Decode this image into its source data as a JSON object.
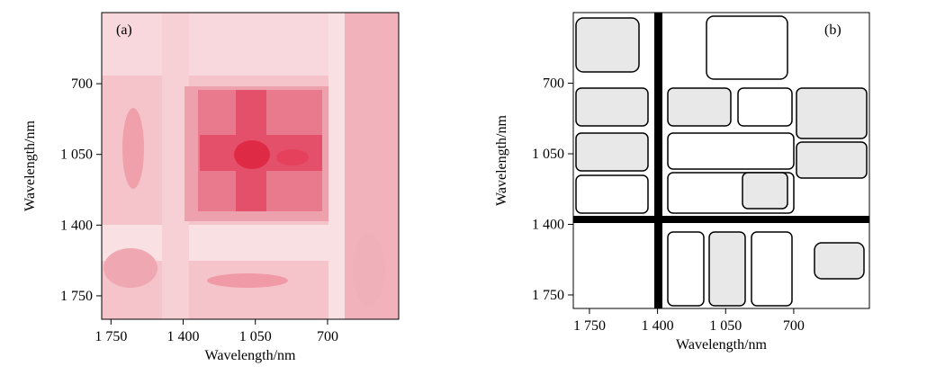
{
  "chart_data": [
    {
      "type": "contour",
      "panel_label": "(a)",
      "x_label": "Wavelength/nm",
      "y_label": "Wavelength/nm",
      "xlim": [
        1795,
        355
      ],
      "ylim": [
        348,
        1866
      ],
      "xticks": [
        {
          "value": 1750,
          "label": "1 750"
        },
        {
          "value": 1400,
          "label": "1 400"
        },
        {
          "value": 1050,
          "label": "1 050"
        },
        700
      ],
      "yticks": [
        700,
        {
          "value": 1050,
          "label": "1 050"
        },
        {
          "value": 1400,
          "label": "1 400"
        },
        {
          "value": 1750,
          "label": "1 750"
        }
      ]
    },
    {
      "type": "contour",
      "panel_label": "(b)",
      "x_label": "Wavelength/nm",
      "y_label": "Wavelength/nm",
      "xlim": [
        1833,
        311
      ],
      "ylim": [
        350,
        1817
      ],
      "xticks": [
        {
          "value": 1750,
          "label": "1 750"
        },
        {
          "value": 1400,
          "label": "1 400"
        },
        {
          "value": 1050,
          "label": "1 050"
        },
        700
      ],
      "yticks": [
        700,
        {
          "value": 1050,
          "label": "1 050"
        },
        {
          "value": 1400,
          "label": "1 400"
        },
        {
          "value": 1750,
          "label": "1 750"
        }
      ]
    }
  ]
}
